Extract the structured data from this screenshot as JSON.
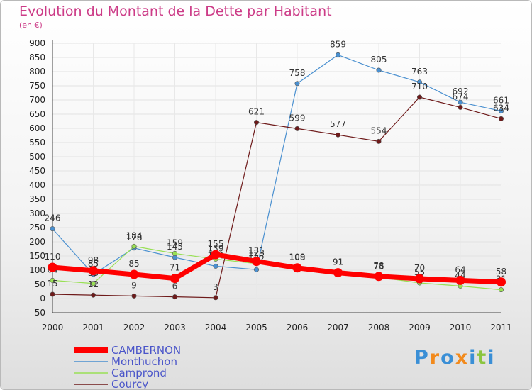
{
  "title": "Evolution du Montant de la Dette par Habitant",
  "subtitle": "(en €)",
  "brand": {
    "letters": [
      "P",
      "r",
      "o",
      "x",
      "i",
      "t",
      "i"
    ],
    "colors": [
      "#3a8fd6",
      "#f28a1c",
      "#3a8fd6",
      "#f28a1c",
      "#3a8fd6",
      "#8bc53f",
      "#3a8fd6"
    ]
  },
  "chart_data": {
    "type": "line",
    "x": [
      "2000",
      "2001",
      "2002",
      "2003",
      "2004",
      "2005",
      "2006",
      "2007",
      "2008",
      "2009",
      "2010",
      "2011"
    ],
    "ylim": [
      -50,
      900
    ],
    "yticks": [
      900,
      850,
      800,
      750,
      700,
      650,
      600,
      550,
      500,
      450,
      400,
      350,
      300,
      250,
      200,
      150,
      100,
      50,
      0,
      -50
    ],
    "legend_position": "bottom-left",
    "series": [
      {
        "name": "CAMBERNON",
        "color": "#ff0000",
        "width": 7,
        "values": [
          110,
          98,
          85,
          71,
          155,
          131,
          108,
          91,
          78,
          70,
          64,
          58
        ]
      },
      {
        "name": "Monthuchon",
        "color": "#4a90d0",
        "width": 1.2,
        "values": [
          246,
          85,
          178,
          145,
          114,
          102,
          758,
          859,
          805,
          763,
          692,
          661
        ]
      },
      {
        "name": "Camprond",
        "color": "#99e055",
        "width": 1.2,
        "values": [
          64,
          53,
          184,
          159,
          139,
          123,
          109,
          91,
          75,
          55,
          44,
          31
        ]
      },
      {
        "name": "Courcy",
        "color": "#6e1a1a",
        "width": 1.2,
        "values": [
          15,
          12,
          9,
          6,
          3,
          621,
          599,
          577,
          554,
          710,
          674,
          634
        ]
      }
    ]
  }
}
